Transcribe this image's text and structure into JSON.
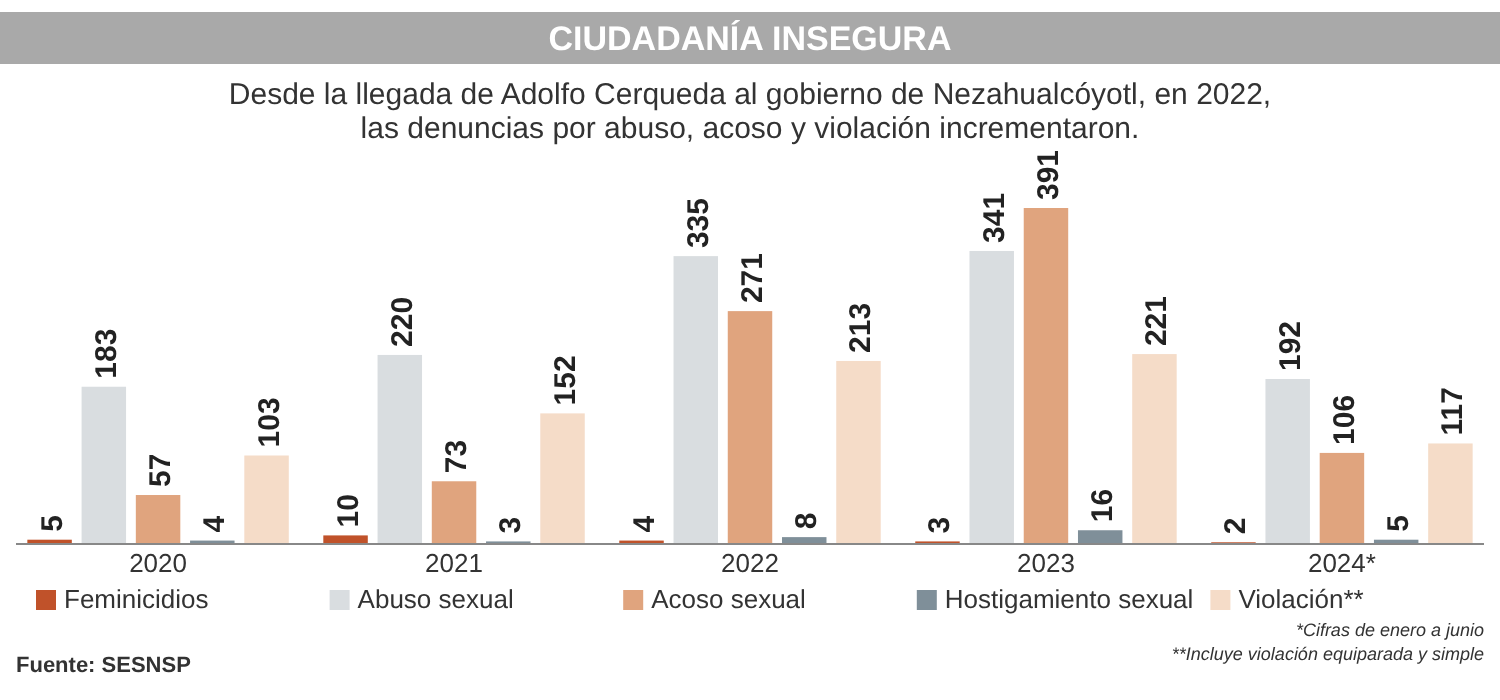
{
  "chart_data": {
    "type": "bar",
    "title": "CIUDADANÍA INSEGURA",
    "subtitle": "Desde la llegada de Adolfo Cerqueda al gobierno de Nezahualcóyotl, en 2022,\nlas denuncias por abuso, acoso y violación incrementaron.",
    "categories": [
      "2020",
      "2021",
      "2022",
      "2023",
      "2024*"
    ],
    "series": [
      {
        "name": "Feminicidios",
        "color": "#c0522a",
        "values": [
          5,
          10,
          4,
          3,
          2
        ]
      },
      {
        "name": "Abuso sexual",
        "color": "#d9dde0",
        "values": [
          183,
          220,
          335,
          341,
          192
        ]
      },
      {
        "name": "Acoso sexual",
        "color": "#e0a47e",
        "values": [
          57,
          73,
          271,
          391,
          106
        ]
      },
      {
        "name": "Hostigamiento sexual",
        "color": "#7f8f99",
        "values": [
          4,
          3,
          8,
          16,
          5
        ]
      },
      {
        "name": "Violación**",
        "color": "#f5dcc8",
        "values": [
          103,
          152,
          213,
          221,
          117
        ]
      }
    ],
    "data_labels": true,
    "legend": "bottom",
    "annotations": [
      "*Cifras de enero a junio",
      "**Incluye violación equiparada y simple",
      "Fuente: SESNSP"
    ]
  }
}
